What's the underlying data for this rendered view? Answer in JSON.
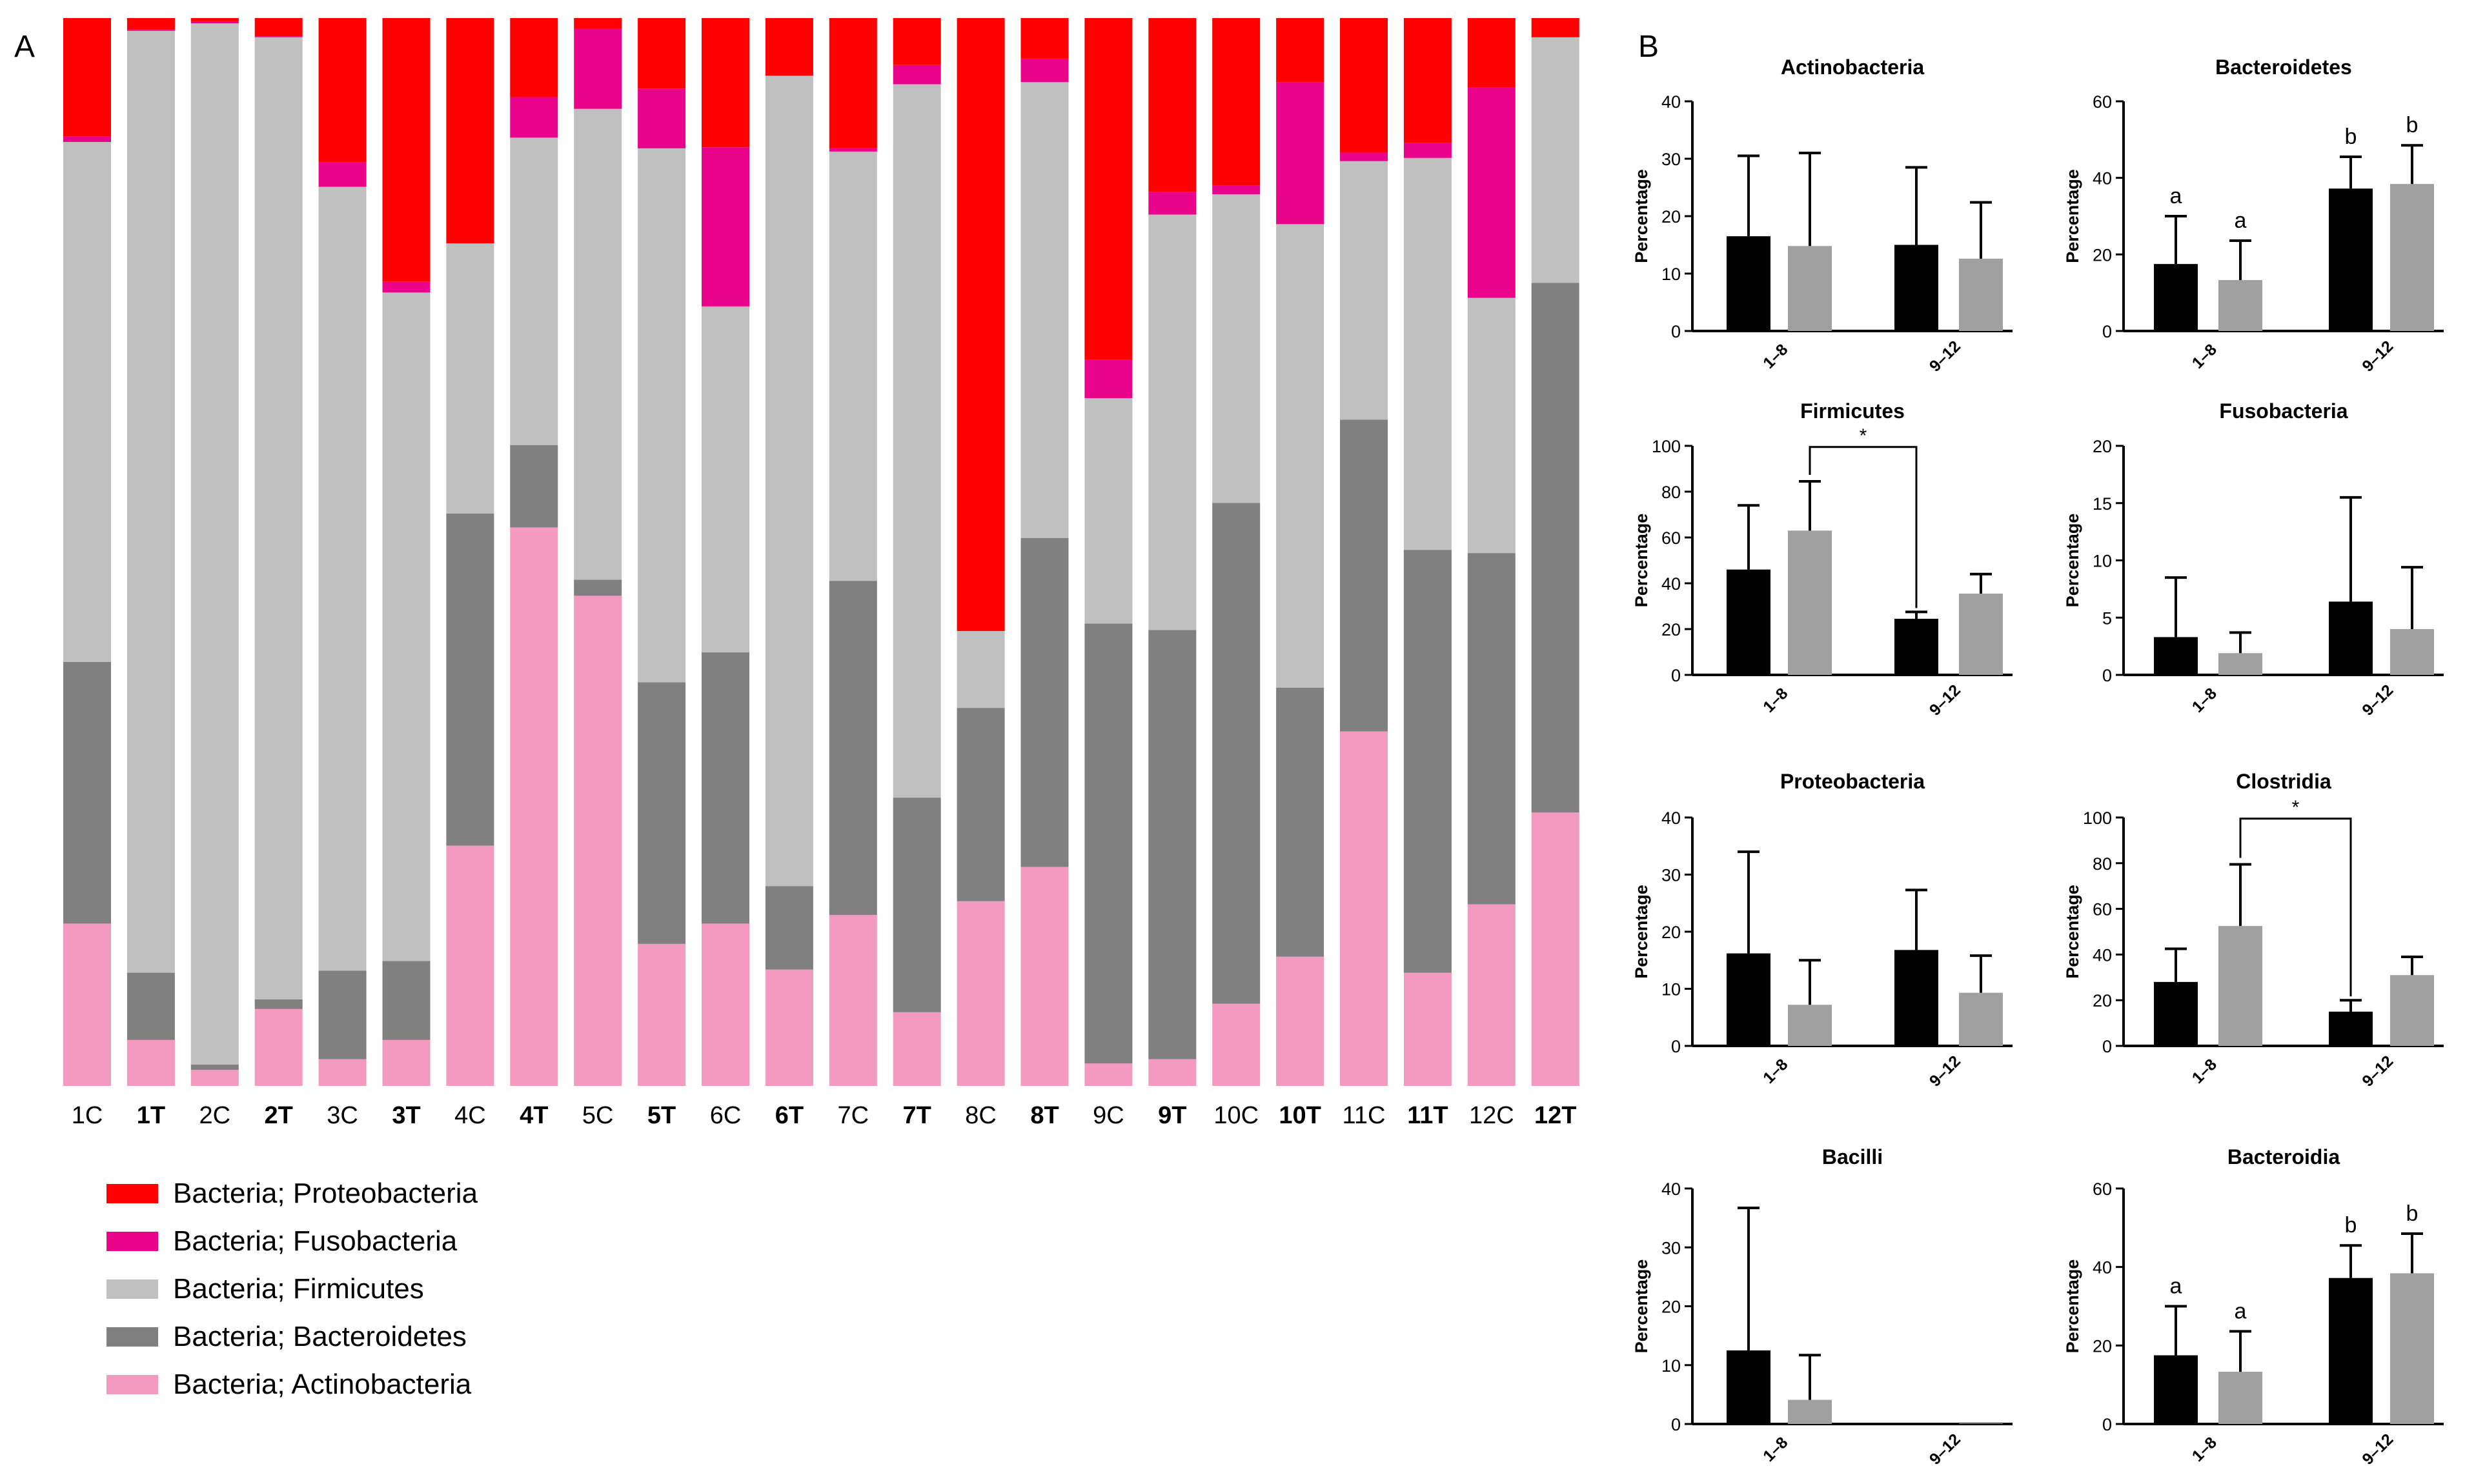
{
  "chart_data": [
    {
      "type": "stacked-bar",
      "panel_label": "A",
      "series_bottom_to_top": [
        "Actinobacteria",
        "Bacteroidetes",
        "Firmicutes",
        "Fusobacteria",
        "Proteobacteria"
      ],
      "categories": [
        {
          "label": "1C",
          "bold": false,
          "values": [
            15.2,
            24.5,
            48.7,
            0.5,
            11.1
          ]
        },
        {
          "label": "1T",
          "bold": true,
          "values": [
            4.3,
            6.3,
            88.2,
            0.1,
            1.1
          ]
        },
        {
          "label": "2C",
          "bold": false,
          "values": [
            1.5,
            0.5,
            97.5,
            0.2,
            0.3
          ]
        },
        {
          "label": "2T",
          "bold": true,
          "values": [
            7.2,
            0.9,
            90.1,
            0.1,
            1.7
          ]
        },
        {
          "label": "3C",
          "bold": false,
          "values": [
            2.5,
            8.3,
            73.4,
            2.3,
            13.5
          ]
        },
        {
          "label": "3T",
          "bold": true,
          "values": [
            4.3,
            7.4,
            62.6,
            1.0,
            24.7
          ]
        },
        {
          "label": "4C",
          "bold": false,
          "values": [
            22.5,
            31.1,
            25.3,
            0.0,
            21.1
          ]
        },
        {
          "label": "4T",
          "bold": true,
          "values": [
            52.3,
            7.7,
            28.8,
            3.8,
            7.4
          ]
        },
        {
          "label": "5C",
          "bold": false,
          "values": [
            45.9,
            1.5,
            44.1,
            7.5,
            1.0
          ]
        },
        {
          "label": "5T",
          "bold": true,
          "values": [
            13.3,
            24.5,
            50.0,
            5.6,
            6.6
          ]
        },
        {
          "label": "6C",
          "bold": false,
          "values": [
            15.2,
            25.4,
            32.4,
            14.9,
            12.1
          ]
        },
        {
          "label": "6T",
          "bold": true,
          "values": [
            10.9,
            7.8,
            75.9,
            0.0,
            5.4
          ]
        },
        {
          "label": "7C",
          "bold": false,
          "values": [
            16.0,
            31.3,
            40.2,
            0.3,
            12.2
          ]
        },
        {
          "label": "7T",
          "bold": true,
          "values": [
            6.9,
            20.1,
            66.8,
            1.8,
            4.4
          ]
        },
        {
          "label": "8C",
          "bold": false,
          "values": [
            17.3,
            18.1,
            7.2,
            0.0,
            57.4
          ]
        },
        {
          "label": "8T",
          "bold": true,
          "values": [
            20.5,
            30.8,
            42.7,
            2.2,
            3.8
          ]
        },
        {
          "label": "9C",
          "bold": false,
          "values": [
            2.1,
            41.2,
            21.1,
            3.6,
            32.0
          ]
        },
        {
          "label": "9T",
          "bold": true,
          "values": [
            2.5,
            40.2,
            38.9,
            2.1,
            16.3
          ]
        },
        {
          "label": "10C",
          "bold": false,
          "values": [
            7.7,
            46.9,
            28.9,
            0.8,
            15.7
          ]
        },
        {
          "label": "10T",
          "bold": true,
          "values": [
            12.1,
            25.2,
            43.4,
            13.3,
            6.0
          ]
        },
        {
          "label": "11C",
          "bold": false,
          "values": [
            33.2,
            29.2,
            24.2,
            0.8,
            12.6
          ]
        },
        {
          "label": "11T",
          "bold": true,
          "values": [
            10.6,
            39.6,
            36.7,
            1.4,
            11.7
          ]
        },
        {
          "label": "12C",
          "bold": false,
          "values": [
            17.0,
            32.9,
            23.9,
            19.7,
            6.5
          ]
        },
        {
          "label": "12T",
          "bold": true,
          "values": [
            25.6,
            49.6,
            23.0,
            0.0,
            1.8
          ]
        }
      ],
      "legend": [
        {
          "label": "Bacteria; Proteobacteria",
          "color": "#ff0000"
        },
        {
          "label": "Bacteria; Fusobacteria",
          "color": "#e9048b"
        },
        {
          "label": "Bacteria; Firmicutes",
          "color": "#c0c0c0"
        },
        {
          "label": "Bacteria; Bacteroidetes",
          "color": "#808080"
        },
        {
          "label": "Bacteria; Actinobacteria",
          "color": "#f49ac1"
        }
      ],
      "colors": {
        "Actinobacteria": "#f49ac1",
        "Bacteroidetes": "#808080",
        "Firmicutes": "#c0c0c0",
        "Fusobacteria": "#e9048b",
        "Proteobacteria": "#ff0000"
      },
      "ylim": [
        0,
        100
      ]
    },
    {
      "type": "bar",
      "panel_label": "B",
      "groups": [
        "1–8",
        "9–12"
      ],
      "ylabel": "Percentage",
      "series_colors": [
        "#000000",
        "#a0a0a0"
      ],
      "panels": [
        {
          "title": "Actinobacteria",
          "ymax": 40,
          "ticks": [
            0,
            10,
            20,
            30,
            40
          ],
          "means": [
            [
              16.5,
              14.8
            ],
            [
              15.0,
              12.6
            ]
          ],
          "errors": [
            [
              14.0,
              16.2
            ],
            [
              13.5,
              9.8
            ]
          ],
          "letters": [],
          "sig": null
        },
        {
          "title": "Bacteroidetes",
          "ymax": 60,
          "ticks": [
            0,
            20,
            40,
            60
          ],
          "means": [
            [
              17.5,
              13.3
            ],
            [
              37.2,
              38.4
            ]
          ],
          "errors": [
            [
              12.5,
              10.3
            ],
            [
              8.3,
              10.1
            ]
          ],
          "letters": [
            [
              "a",
              "a"
            ],
            [
              "b",
              "b"
            ]
          ],
          "sig": null
        },
        {
          "title": "Firmicutes",
          "ymax": 100,
          "ticks": [
            0,
            20,
            40,
            60,
            80,
            100
          ],
          "means": [
            [
              46.0,
              63.0
            ],
            [
              24.5,
              35.5
            ]
          ],
          "errors": [
            [
              28.0,
              21.5
            ],
            [
              3.0,
              8.5
            ]
          ],
          "letters": [],
          "sig": {
            "from": [
              0,
              1
            ],
            "to": [
              1,
              0
            ],
            "label": "*"
          }
        },
        {
          "title": "Fusobacteria",
          "ymax": 20,
          "ticks": [
            0,
            5,
            10,
            15,
            20
          ],
          "means": [
            [
              3.3,
              1.9
            ],
            [
              6.4,
              4.0
            ]
          ],
          "errors": [
            [
              5.2,
              1.8
            ],
            [
              9.1,
              5.4
            ]
          ],
          "letters": [],
          "sig": null
        },
        {
          "title": "Proteobacteria",
          "ymax": 40,
          "ticks": [
            0,
            10,
            20,
            30,
            40
          ],
          "means": [
            [
              16.2,
              7.2
            ],
            [
              16.8,
              9.3
            ]
          ],
          "errors": [
            [
              17.8,
              7.8
            ],
            [
              10.5,
              6.5
            ]
          ],
          "letters": [],
          "sig": null
        },
        {
          "title": "Clostridia",
          "ymax": 100,
          "ticks": [
            0,
            20,
            40,
            60,
            80,
            100
          ],
          "means": [
            [
              28.0,
              52.5
            ],
            [
              15.0,
              31.0
            ]
          ],
          "errors": [
            [
              14.5,
              27.0
            ],
            [
              5.0,
              8.0
            ]
          ],
          "letters": [],
          "sig": {
            "from": [
              0,
              1
            ],
            "to": [
              1,
              0
            ],
            "label": "*"
          }
        },
        {
          "title": "Bacilli",
          "ymax": 40,
          "ticks": [
            0,
            10,
            20,
            30,
            40
          ],
          "means": [
            [
              12.5,
              4.1
            ],
            [
              0.2,
              0.1
            ]
          ],
          "errors": [
            [
              24.2,
              7.6
            ],
            [
              0.0,
              0.0
            ]
          ],
          "letters": [],
          "sig": null
        },
        {
          "title": "Bacteroidia",
          "ymax": 60,
          "ticks": [
            0,
            20,
            40,
            60
          ],
          "means": [
            [
              17.5,
              13.3
            ],
            [
              37.2,
              38.4
            ]
          ],
          "errors": [
            [
              12.5,
              10.3
            ],
            [
              8.3,
              10.1
            ]
          ],
          "letters": [
            [
              "a",
              "a"
            ],
            [
              "b",
              "b"
            ]
          ],
          "sig": null
        }
      ]
    }
  ]
}
